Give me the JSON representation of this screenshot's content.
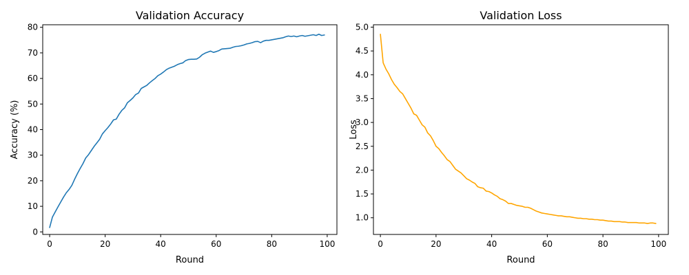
{
  "chart_data": [
    {
      "type": "line",
      "title": "Validation Accuracy",
      "xlabel": "Round",
      "ylabel": "Accuracy (%)",
      "xlim": [
        -2.5,
        103.5
      ],
      "ylim": [
        -1.0,
        81.0
      ],
      "xticks": [
        0,
        20,
        40,
        60,
        80,
        100
      ],
      "yticks": [
        0,
        10,
        20,
        30,
        40,
        50,
        60,
        70,
        80
      ],
      "grid": false,
      "color": "#1f77b4",
      "x": [
        0,
        1,
        2,
        3,
        4,
        5,
        6,
        7,
        8,
        9,
        10,
        11,
        12,
        13,
        14,
        15,
        16,
        17,
        18,
        19,
        20,
        21,
        22,
        23,
        24,
        25,
        26,
        27,
        28,
        29,
        30,
        31,
        32,
        33,
        34,
        35,
        36,
        37,
        38,
        39,
        40,
        41,
        42,
        43,
        44,
        45,
        46,
        47,
        48,
        49,
        50,
        51,
        52,
        53,
        54,
        55,
        56,
        57,
        58,
        59,
        60,
        61,
        62,
        63,
        64,
        65,
        66,
        67,
        68,
        69,
        70,
        71,
        72,
        73,
        74,
        75,
        76,
        77,
        78,
        79,
        80,
        81,
        82,
        83,
        84,
        85,
        86,
        87,
        88,
        89,
        90,
        91,
        92,
        93,
        94,
        95,
        96,
        97,
        98,
        99
      ],
      "y": [
        1.7,
        5.8,
        7.8,
        9.8,
        11.7,
        13.6,
        15.3,
        16.6,
        18.2,
        20.6,
        22.8,
        24.8,
        26.7,
        28.9,
        30.2,
        31.8,
        33.4,
        34.8,
        36.2,
        38.3,
        39.6,
        40.8,
        42.2,
        43.8,
        44.1,
        46.0,
        47.5,
        48.5,
        50.5,
        51.4,
        52.4,
        53.7,
        54.3,
        56.1,
        56.7,
        57.3,
        58.3,
        59.2,
        60.0,
        61.1,
        61.7,
        62.5,
        63.4,
        64.0,
        64.4,
        64.8,
        65.4,
        65.8,
        66.1,
        67.0,
        67.4,
        67.5,
        67.5,
        67.6,
        68.3,
        69.3,
        69.9,
        70.3,
        70.7,
        70.2,
        70.5,
        70.9,
        71.5,
        71.6,
        71.7,
        71.8,
        72.2,
        72.5,
        72.6,
        72.8,
        73.1,
        73.5,
        73.7,
        74.0,
        74.4,
        74.5,
        74.0,
        74.6,
        74.9,
        74.9,
        75.1,
        75.3,
        75.5,
        75.7,
        75.9,
        76.3,
        76.6,
        76.4,
        76.6,
        76.3,
        76.6,
        76.8,
        76.5,
        76.7,
        76.9,
        77.1,
        76.8,
        77.3,
        76.8,
        77.0
      ]
    },
    {
      "type": "line",
      "title": "Validation Loss",
      "xlabel": "Round",
      "ylabel": "Loss",
      "xlim": [
        -2.5,
        103.5
      ],
      "ylim": [
        0.65,
        5.05
      ],
      "xticks": [
        0,
        20,
        40,
        60,
        80,
        100
      ],
      "yticks": [
        1.0,
        1.5,
        2.0,
        2.5,
        3.0,
        3.5,
        4.0,
        4.5,
        5.0
      ],
      "yticklabels": [
        "1.0",
        "1.5",
        "2.0",
        "2.5",
        "3.0",
        "3.5",
        "4.0",
        "4.5",
        "5.0"
      ],
      "grid": false,
      "color": "#ffa500",
      "x": [
        0,
        1,
        2,
        3,
        4,
        5,
        6,
        7,
        8,
        9,
        10,
        11,
        12,
        13,
        14,
        15,
        16,
        17,
        18,
        19,
        20,
        21,
        22,
        23,
        24,
        25,
        26,
        27,
        28,
        29,
        30,
        31,
        32,
        33,
        34,
        35,
        36,
        37,
        38,
        39,
        40,
        41,
        42,
        43,
        44,
        45,
        46,
        47,
        48,
        49,
        50,
        51,
        52,
        53,
        54,
        55,
        56,
        57,
        58,
        59,
        60,
        61,
        62,
        63,
        64,
        65,
        66,
        67,
        68,
        69,
        70,
        71,
        72,
        73,
        74,
        75,
        76,
        77,
        78,
        79,
        80,
        81,
        82,
        83,
        84,
        85,
        86,
        87,
        88,
        89,
        90,
        91,
        92,
        93,
        94,
        95,
        96,
        97,
        98,
        99
      ],
      "y": [
        4.85,
        4.25,
        4.12,
        4.02,
        3.9,
        3.8,
        3.73,
        3.65,
        3.6,
        3.5,
        3.4,
        3.3,
        3.18,
        3.15,
        3.05,
        2.95,
        2.9,
        2.78,
        2.72,
        2.62,
        2.5,
        2.45,
        2.37,
        2.3,
        2.22,
        2.18,
        2.1,
        2.02,
        1.98,
        1.94,
        1.88,
        1.82,
        1.79,
        1.75,
        1.72,
        1.65,
        1.63,
        1.62,
        1.56,
        1.55,
        1.52,
        1.48,
        1.45,
        1.4,
        1.38,
        1.35,
        1.3,
        1.3,
        1.28,
        1.26,
        1.25,
        1.24,
        1.22,
        1.22,
        1.2,
        1.17,
        1.14,
        1.12,
        1.1,
        1.09,
        1.08,
        1.07,
        1.06,
        1.05,
        1.04,
        1.04,
        1.03,
        1.02,
        1.02,
        1.01,
        1.0,
        0.99,
        0.99,
        0.98,
        0.98,
        0.97,
        0.97,
        0.96,
        0.96,
        0.95,
        0.95,
        0.94,
        0.93,
        0.93,
        0.92,
        0.92,
        0.92,
        0.91,
        0.91,
        0.9,
        0.9,
        0.9,
        0.9,
        0.89,
        0.89,
        0.89,
        0.88,
        0.89,
        0.89,
        0.88
      ]
    }
  ]
}
